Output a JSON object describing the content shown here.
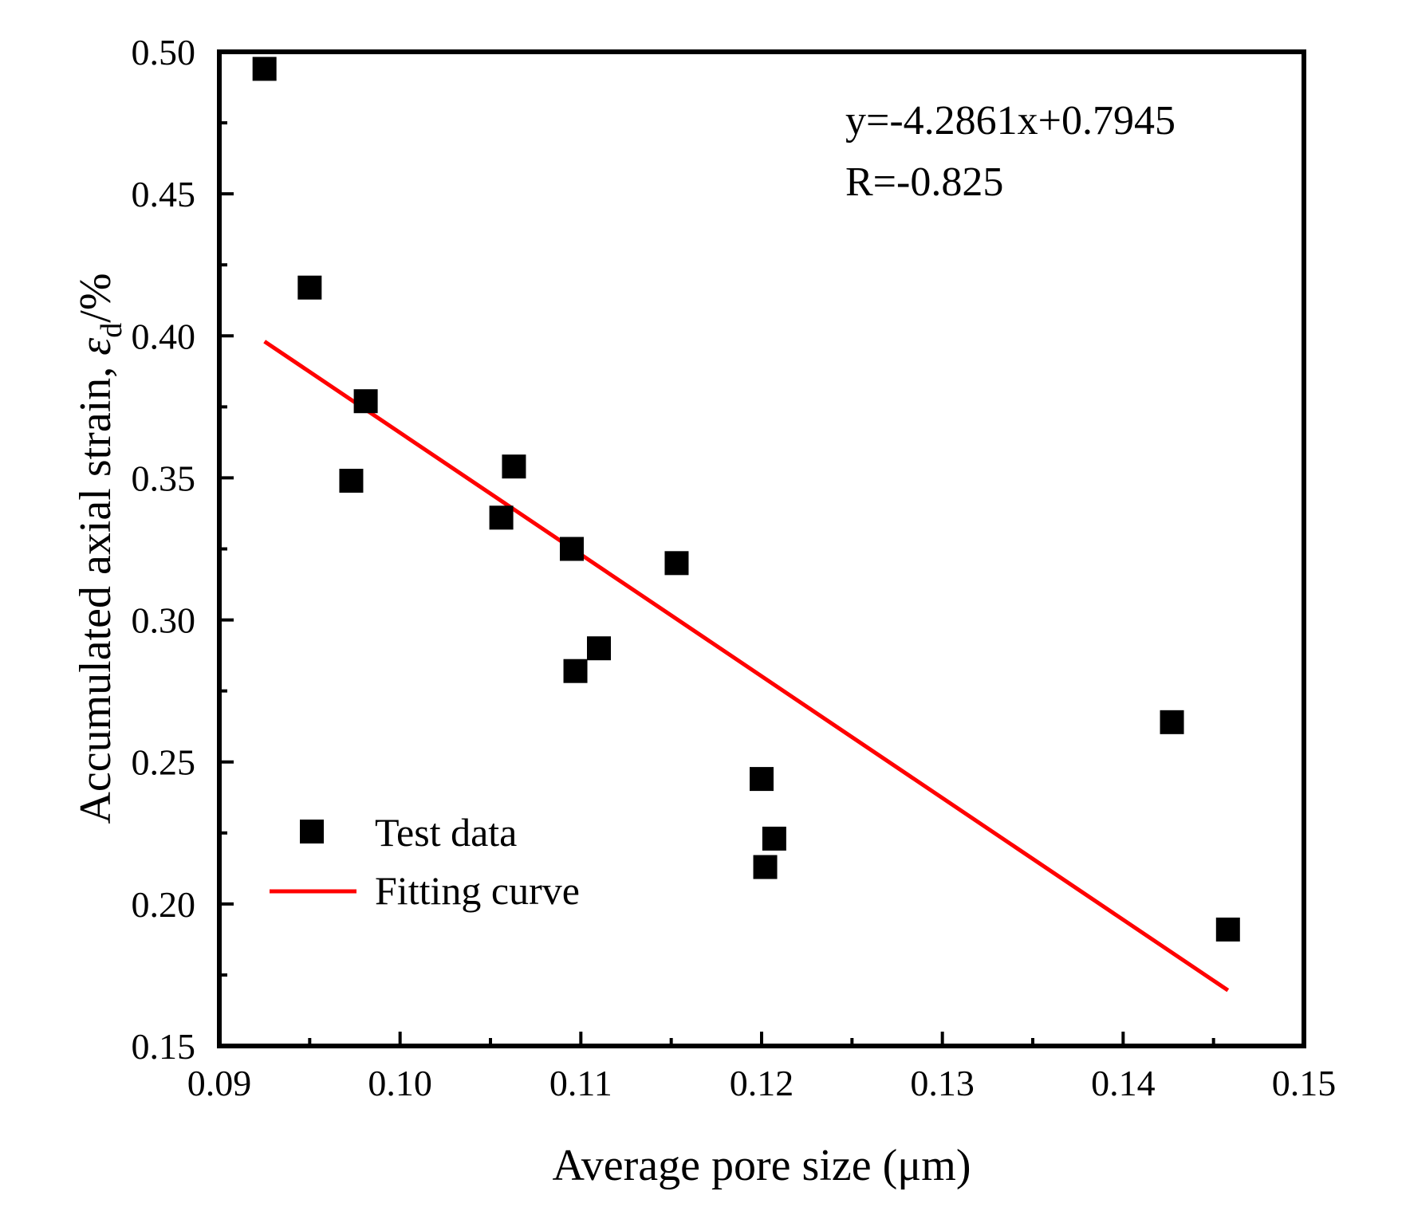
{
  "chart_data": {
    "type": "scatter",
    "title": "",
    "xlabel": "Average pore size (μm)",
    "ylabel": {
      "prefix": "Accumulated axial strain, ",
      "symbol": "ε",
      "subscript": "d",
      "suffix": "/%"
    },
    "xlim": [
      0.09,
      0.15
    ],
    "ylim": [
      0.15,
      0.5
    ],
    "x_ticks": [
      0.09,
      0.1,
      0.11,
      0.12,
      0.13,
      0.14,
      0.15
    ],
    "x_tick_labels": [
      "0.09",
      "0.10",
      "0.11",
      "0.12",
      "0.13",
      "0.14",
      "0.15"
    ],
    "y_ticks": [
      0.15,
      0.2,
      0.25,
      0.3,
      0.35,
      0.4,
      0.45,
      0.5
    ],
    "y_tick_labels": [
      "0.15",
      "0.20",
      "0.25",
      "0.30",
      "0.35",
      "0.40",
      "0.45",
      "0.50"
    ],
    "grid": false,
    "legend_position": "bottom-left",
    "series": [
      {
        "name": "Test data",
        "kind": "scatter",
        "marker": "square",
        "color": "#000000",
        "points": [
          {
            "x": 0.0925,
            "y": 0.494
          },
          {
            "x": 0.095,
            "y": 0.417
          },
          {
            "x": 0.0981,
            "y": 0.377
          },
          {
            "x": 0.0973,
            "y": 0.349
          },
          {
            "x": 0.1056,
            "y": 0.336
          },
          {
            "x": 0.1063,
            "y": 0.354
          },
          {
            "x": 0.1095,
            "y": 0.325
          },
          {
            "x": 0.1097,
            "y": 0.282
          },
          {
            "x": 0.111,
            "y": 0.29
          },
          {
            "x": 0.1153,
            "y": 0.32
          },
          {
            "x": 0.12,
            "y": 0.244
          },
          {
            "x": 0.1207,
            "y": 0.223
          },
          {
            "x": 0.1202,
            "y": 0.213
          },
          {
            "x": 0.1427,
            "y": 0.264
          },
          {
            "x": 0.1458,
            "y": 0.191
          }
        ]
      },
      {
        "name": "Fitting curve",
        "kind": "line",
        "color": "#ff0000",
        "slope": -4.2861,
        "intercept": 0.7945,
        "x_range": [
          0.0925,
          0.1458
        ]
      }
    ],
    "annotations": {
      "equation": "y=-4.2861x+0.7945",
      "r_value": "R=-0.825"
    }
  }
}
